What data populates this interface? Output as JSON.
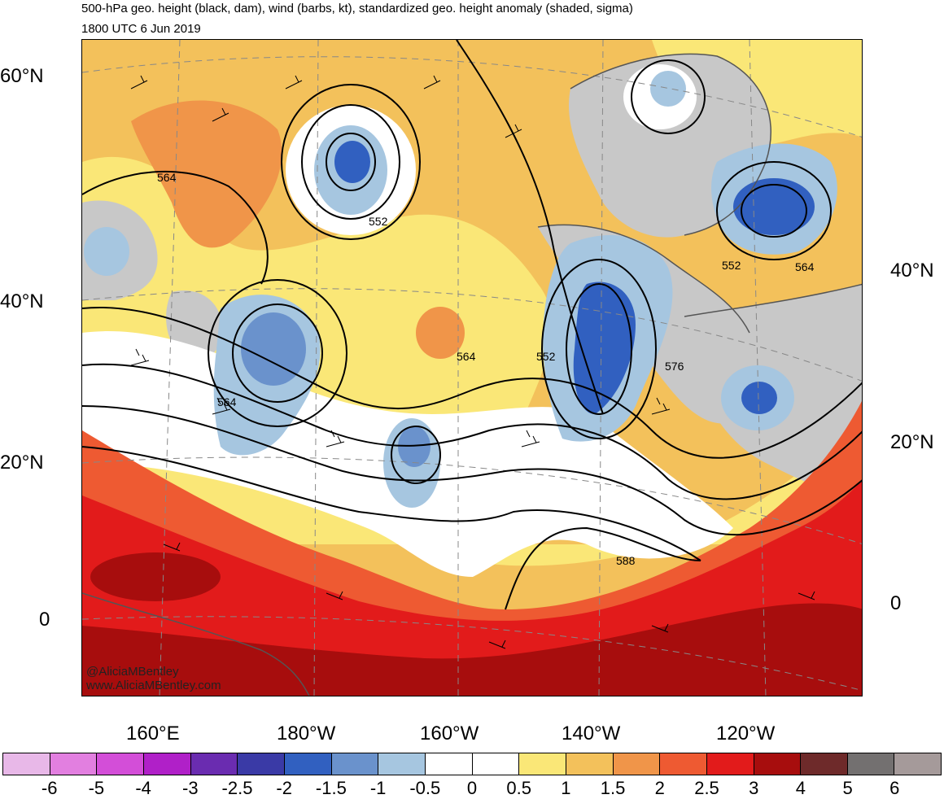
{
  "header": {
    "title": "500-hPa geo. height (black, dam), wind (barbs, kt), standardized geo. height anomaly (shaded, sigma)",
    "valid_time": "1800 UTC 6 Jun 2019"
  },
  "map": {
    "lat_labels_left": [
      "60°N",
      "40°N",
      "20°N",
      "0"
    ],
    "lat_labels_right": [
      "40°N",
      "20°N",
      "0"
    ],
    "lon_labels": [
      "160°E",
      "180°W",
      "160°W",
      "140°W",
      "120°W"
    ],
    "contour_labels": [
      "564",
      "552",
      "564",
      "564",
      "552",
      "552",
      "564",
      "576",
      "588"
    ],
    "credit_handle": "@AliciaMBentley",
    "credit_site": "www.AliciaMBentley.com",
    "colors": {
      "land_gray": "#c8c8c8",
      "coast": "#555555"
    }
  },
  "colorbar": {
    "colors": [
      "#e8b8e8",
      "#e27fe0",
      "#d34ed8",
      "#b020c8",
      "#6a2cb0",
      "#3a3aa6",
      "#3160c0",
      "#6a92cc",
      "#a6c6e0",
      "#ffffff",
      "#ffffff",
      "#fae777",
      "#f3c15b",
      "#f09549",
      "#ee5a32",
      "#e21b1b",
      "#a70d0d",
      "#6e2a2a",
      "#737070",
      "#a59a9a"
    ],
    "labels": [
      "-6",
      "-5",
      "-4",
      "-3",
      "-2.5",
      "-2",
      "-1.5",
      "-1",
      "-0.5",
      "0",
      "0.5",
      "1",
      "1.5",
      "2",
      "2.5",
      "3",
      "4",
      "5",
      "6"
    ]
  }
}
